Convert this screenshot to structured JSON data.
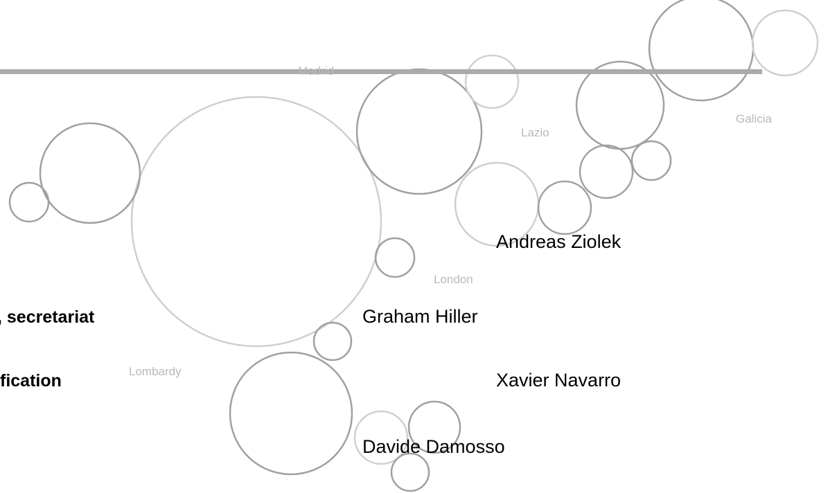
{
  "map_labels": [
    "Madrid",
    "Lazio",
    "Galicia",
    "London",
    "Lombardy"
  ],
  "left_items": [
    ", secretariat",
    "fication"
  ],
  "names": [
    "Andreas Ziolek",
    "Graham Hiller",
    "Xavier Navarro",
    "Davide Damosso"
  ]
}
